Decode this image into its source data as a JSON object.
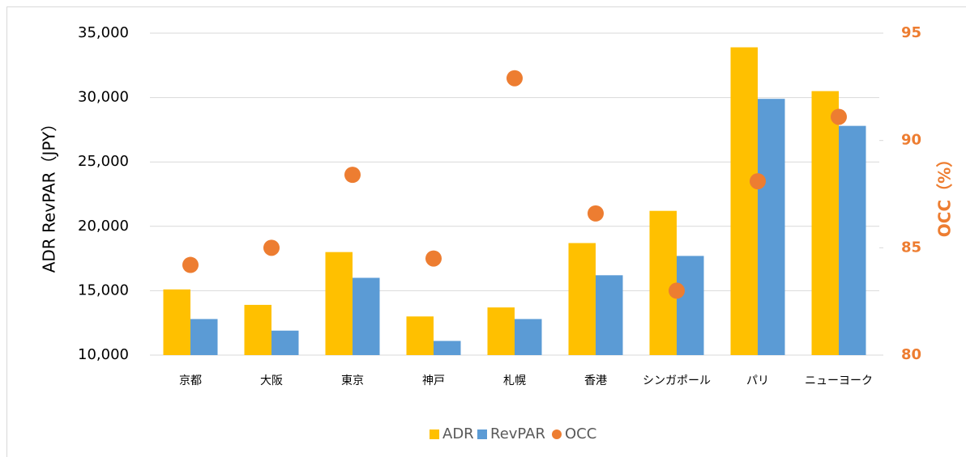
{
  "chart_data": {
    "type": "bar",
    "categories": [
      "京都",
      "大阪",
      "東京",
      "神戸",
      "札幌",
      "香港",
      "シンガポール",
      "パリ",
      "ニューヨーク"
    ],
    "series": [
      {
        "name": "ADR",
        "color": "#ffc000",
        "type": "bar",
        "values": [
          15100,
          13900,
          18000,
          13000,
          13700,
          18700,
          21200,
          33900,
          30500
        ]
      },
      {
        "name": "RevPAR",
        "color": "#5b9bd5",
        "type": "bar",
        "values": [
          12800,
          11900,
          16000,
          11100,
          12800,
          16200,
          17700,
          29900,
          27800
        ]
      },
      {
        "name": "OCC",
        "color": "#ed7d31",
        "type": "scatter",
        "axis": "y2",
        "values": [
          84.2,
          85.0,
          88.4,
          84.5,
          92.9,
          86.6,
          83.0,
          88.1,
          91.1
        ]
      }
    ],
    "ylabel": "ADR  RevPAR（JPY）",
    "y2label": "OCC（%）",
    "ylim": [
      10000,
      35000
    ],
    "yticks": [
      {
        "value": 10000,
        "label": "10,000"
      },
      {
        "value": 15000,
        "label": "15,000"
      },
      {
        "value": 20000,
        "label": "20,000"
      },
      {
        "value": 25000,
        "label": "25,000"
      },
      {
        "value": 30000,
        "label": "30,000"
      },
      {
        "value": 35000,
        "label": "35,000"
      }
    ],
    "y2lim": [
      80,
      95
    ],
    "y2ticks": [
      80,
      85,
      90,
      95
    ],
    "grid": true,
    "legend": "bottom"
  }
}
